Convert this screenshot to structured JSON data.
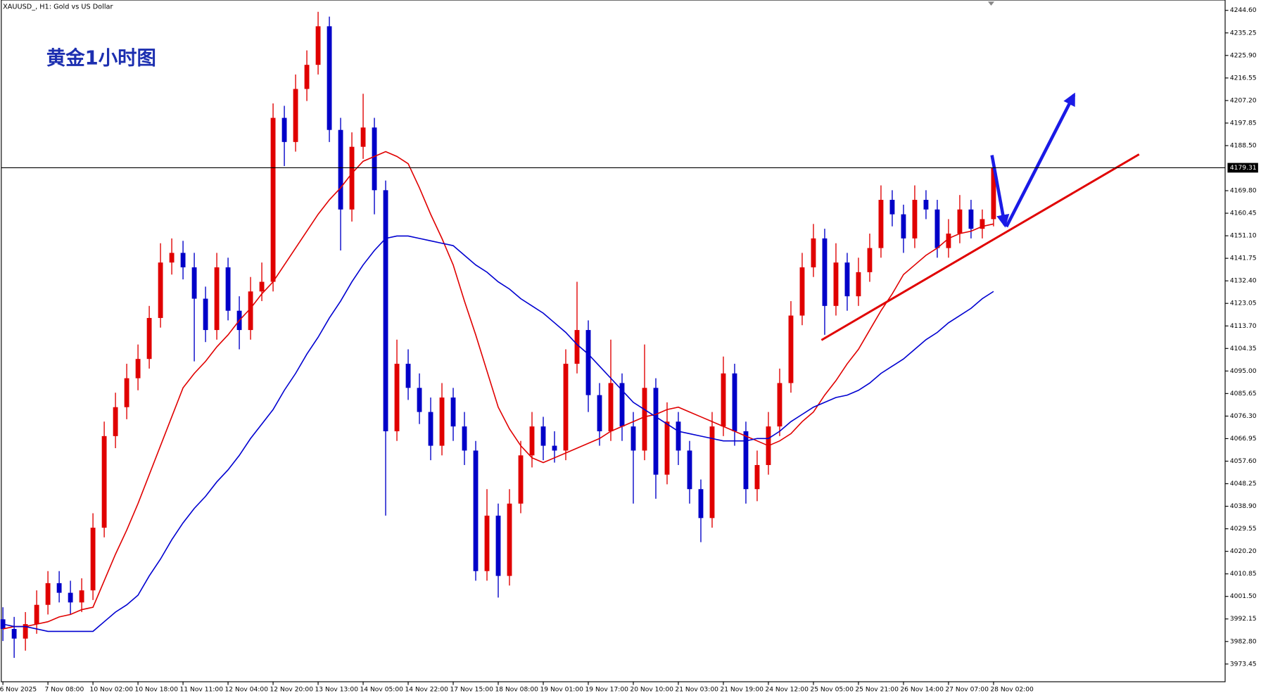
{
  "chart_data": {
    "type": "candlestick",
    "title": "XAUUSD_, H1:  Gold vs US Dollar",
    "annotation": "黄金1小时图",
    "categories": [
      "6 Nov 2025",
      null,
      null,
      null,
      "7 Nov 08:00",
      null,
      null,
      null,
      "10 Nov 02:00",
      null,
      null,
      null,
      "10 Nov 18:00",
      null,
      null,
      null,
      "11 Nov 11:00",
      null,
      null,
      null,
      "12 Nov 04:00",
      null,
      null,
      null,
      "12 Nov 20:00",
      null,
      null,
      null,
      "13 Nov 13:00",
      null,
      null,
      null,
      "14 Nov 05:00",
      null,
      null,
      null,
      "14 Nov 22:00",
      null,
      null,
      null,
      "17 Nov 15:00",
      null,
      null,
      null,
      "18 Nov 08:00",
      null,
      null,
      null,
      "19 Nov 01:00",
      null,
      null,
      null,
      "19 Nov 17:00",
      null,
      null,
      null,
      "20 Nov 10:00",
      null,
      null,
      null,
      "21 Nov 03:00",
      null,
      null,
      null,
      "21 Nov 19:00",
      null,
      null,
      null,
      "24 Nov 12:00",
      null,
      null,
      null,
      "25 Nov 05:00",
      null,
      null,
      null,
      "25 Nov 21:00",
      null,
      null,
      null,
      "26 Nov 14:00",
      null,
      null,
      null,
      "27 Nov 07:00",
      null,
      null,
      null,
      "28 Nov 02:00"
    ],
    "open": [
      3992,
      3988,
      3984,
      3990,
      3998,
      4007,
      4003,
      3999,
      4004,
      4030,
      4068,
      4080,
      4092,
      4100,
      4117,
      4140,
      4144,
      4138,
      4125,
      4112,
      4138,
      4120,
      4112,
      4128,
      4132,
      4200,
      4190,
      4212,
      4222,
      4238,
      4195,
      4162,
      4188,
      4196,
      4170,
      4070,
      4098,
      4088,
      4078,
      4064,
      4084,
      4072,
      4062,
      4012,
      4035,
      4010,
      4040,
      4060,
      4072,
      4064,
      4062,
      4098,
      4112,
      4085,
      4070,
      4090,
      4072,
      4062,
      4088,
      4052,
      4074,
      4062,
      4046,
      4034,
      4072,
      4094,
      4070,
      4046,
      4056,
      4072,
      4090,
      4118,
      4138,
      4150,
      4122,
      4140,
      4126,
      4136,
      4146,
      4166,
      4160,
      4150,
      4166,
      4162,
      4146,
      4152,
      4162,
      4154,
      4158
    ],
    "high": [
      3997,
      3993,
      3995,
      4004,
      4012,
      4012,
      4008,
      4009,
      4036,
      4074,
      4086,
      4098,
      4106,
      4122,
      4148,
      4150,
      4149,
      4144,
      4130,
      4144,
      4142,
      4126,
      4134,
      4140,
      4206,
      4205,
      4218,
      4228,
      4244,
      4242,
      4200,
      4194,
      4210,
      4200,
      4174,
      4108,
      4104,
      4094,
      4084,
      4090,
      4088,
      4078,
      4066,
      4046,
      4040,
      4046,
      4066,
      4078,
      4076,
      4070,
      4104,
      4132,
      4116,
      4090,
      4108,
      4094,
      4078,
      4106,
      4092,
      4082,
      4078,
      4066,
      4050,
      4078,
      4101,
      4098,
      4074,
      4062,
      4078,
      4096,
      4124,
      4144,
      4156,
      4154,
      4148,
      4144,
      4142,
      4152,
      4172,
      4170,
      4164,
      4172,
      4170,
      4166,
      4158,
      4168,
      4166,
      4162,
      4183
    ],
    "low": [
      3983,
      3976,
      3979,
      3986,
      3994,
      3999,
      3994,
      3995,
      4000,
      4026,
      4063,
      4075,
      4087,
      4096,
      4113,
      4135,
      4133,
      4099,
      4107,
      4108,
      4116,
      4104,
      4108,
      4124,
      4128,
      4180,
      4186,
      4207,
      4218,
      4190,
      4145,
      4157,
      4183,
      4160,
      4035,
      4066,
      4083,
      4073,
      4058,
      4060,
      4066,
      4056,
      4008,
      4008,
      4001,
      4006,
      4036,
      4055,
      4058,
      4057,
      4058,
      4094,
      4078,
      4064,
      4066,
      4066,
      4040,
      4058,
      4042,
      4048,
      4056,
      4040,
      4024,
      4030,
      4068,
      4064,
      4040,
      4041,
      4052,
      4068,
      4086,
      4114,
      4134,
      4110,
      4118,
      4120,
      4122,
      4132,
      4142,
      4155,
      4144,
      4146,
      4158,
      4142,
      4142,
      4148,
      4150,
      4150,
      4155
    ],
    "close": [
      3988,
      3984,
      3990,
      3998,
      4007,
      4003,
      3999,
      4004,
      4030,
      4068,
      4080,
      4092,
      4100,
      4117,
      4140,
      4144,
      4138,
      4125,
      4112,
      4138,
      4120,
      4112,
      4128,
      4132,
      4200,
      4190,
      4212,
      4222,
      4238,
      4195,
      4162,
      4188,
      4196,
      4170,
      4070,
      4098,
      4088,
      4078,
      4064,
      4084,
      4072,
      4062,
      4012,
      4035,
      4010,
      4040,
      4060,
      4072,
      4064,
      4062,
      4098,
      4112,
      4085,
      4070,
      4090,
      4072,
      4062,
      4088,
      4052,
      4074,
      4062,
      4046,
      4034,
      4072,
      4094,
      4070,
      4046,
      4056,
      4072,
      4090,
      4118,
      4138,
      4150,
      4122,
      4140,
      4126,
      4136,
      4146,
      4166,
      4160,
      4150,
      4166,
      4162,
      4146,
      4152,
      4162,
      4154,
      4158,
      4179.31
    ],
    "up_color": "#e00000",
    "down_color": "#0000c8",
    "moving_averages": [
      {
        "color": "#e00000",
        "values": [
          3988,
          3989,
          3989,
          3990,
          3991,
          3993,
          3994,
          3996,
          3997,
          4008,
          4019,
          4029,
          4040,
          4052,
          4064,
          4076,
          4088,
          4094,
          4099,
          4105,
          4110,
          4116,
          4121,
          4127,
          4132,
          4139,
          4146,
          4153,
          4160,
          4166,
          4171,
          4177,
          4182,
          4184,
          4186,
          4184,
          4181,
          4171,
          4160,
          4150,
          4139,
          4124,
          4110,
          4095,
          4080,
          4071,
          4064,
          4059,
          4057,
          4059,
          4061,
          4063,
          4065,
          4067,
          4070,
          4072,
          4074,
          4076,
          4077,
          4079,
          4080,
          4078,
          4076,
          4074,
          4072,
          4070,
          4068,
          4066,
          4064,
          4066,
          4069,
          4074,
          4078,
          4085,
          4091,
          4098,
          4104,
          4112,
          4120,
          4127,
          4135,
          4139,
          4143,
          4146,
          4150,
          4152,
          4153,
          4155,
          4156
        ]
      },
      {
        "color": "#0000d0",
        "values": [
          3990,
          3989,
          3989,
          3988,
          3987,
          3987,
          3987,
          3987,
          3987,
          3991,
          3995,
          3998,
          4002,
          4010,
          4017,
          4025,
          4032,
          4038,
          4043,
          4049,
          4054,
          4060,
          4067,
          4073,
          4079,
          4087,
          4094,
          4102,
          4109,
          4117,
          4124,
          4132,
          4139,
          4145,
          4150,
          4151,
          4151,
          4150,
          4149,
          4148,
          4147,
          4143,
          4139,
          4136,
          4132,
          4129,
          4125,
          4122,
          4119,
          4115,
          4111,
          4106,
          4102,
          4097,
          4092,
          4087,
          4082,
          4079,
          4076,
          4073,
          4070,
          4069,
          4068,
          4067,
          4066,
          4066,
          4066,
          4067,
          4067,
          4070,
          4074,
          4077,
          4080,
          4082,
          4084,
          4085,
          4087,
          4090,
          4094,
          4097,
          4100,
          4104,
          4108,
          4111,
          4115,
          4118,
          4121,
          4125,
          4128
        ]
      }
    ],
    "current_price": 4179.31,
    "ylim": [
      3966.1,
      4248.9
    ],
    "yticks": [
      {
        "value": 4244.6,
        "label": "4244.60"
      },
      4235.25,
      {
        "value": 4225.9,
        "label": "4225.90"
      },
      4216.55,
      {
        "value": 4207.2,
        "label": "4207.20"
      },
      4197.85,
      {
        "value": 4188.5,
        "label": "4188.50"
      },
      {
        "value": 4169.8,
        "label": "4169.80"
      },
      4160.45,
      {
        "value": 4151.1,
        "label": "4151.10"
      },
      4141.75,
      {
        "value": 4132.4,
        "label": "4132.40"
      },
      4123.05,
      {
        "value": 4113.7,
        "label": "4113.70"
      },
      4104.35,
      {
        "value": 4095,
        "label": "4095.00"
      },
      4085.65,
      {
        "value": 4076.3,
        "label": "4076.30"
      },
      4066.95,
      {
        "value": 4057.6,
        "label": "4057.60"
      },
      4048.25,
      {
        "value": 4038.9,
        "label": "4038.90"
      },
      4029.55,
      {
        "value": 4020.2,
        "label": "4020.20"
      },
      4010.85,
      {
        "value": 4001.5,
        "label": "4001.50"
      },
      3992.15,
      {
        "value": 3982.8,
        "label": "3982.80"
      },
      3973.45
    ]
  }
}
